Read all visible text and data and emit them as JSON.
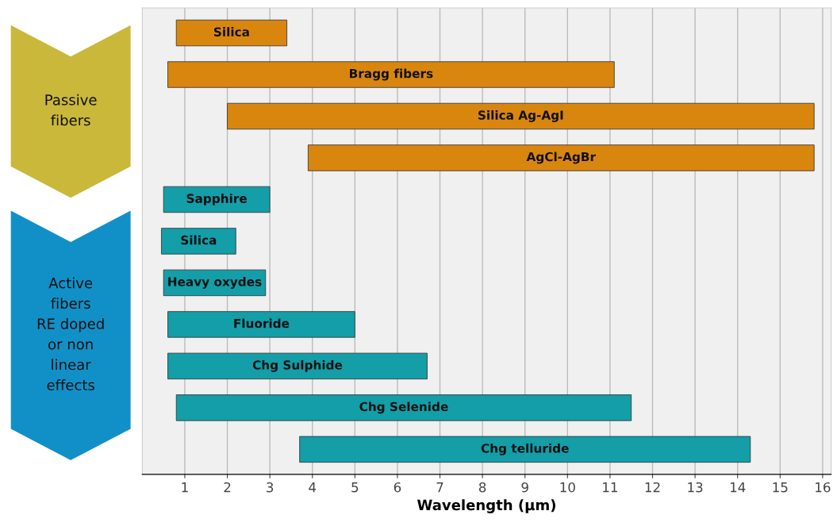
{
  "chart_data": {
    "type": "bar",
    "orientation": "horizontal",
    "xlabel": "Wavelength (µm)",
    "categories": [
      "Silica",
      "Bragg fibers",
      "Silica Ag-AgI",
      "AgCl-AgBr",
      "Sapphire",
      "Silica",
      "Heavy oxydes",
      "Fluoride",
      "Chg Sulphide",
      "Chg Selenide",
      "Chg telluride"
    ],
    "base": [
      0.8,
      0.6,
      2.0,
      3.9,
      0.5,
      0.45,
      0.5,
      0.6,
      0.6,
      0.8,
      3.7
    ],
    "values": [
      2.6,
      10.5,
      13.8,
      11.9,
      2.5,
      1.75,
      2.4,
      4.4,
      6.1,
      10.7,
      10.6
    ],
    "colors": [
      "#d9860f",
      "#d9860f",
      "#d9860f",
      "#d9860f",
      "#139ea8",
      "#139ea8",
      "#139ea8",
      "#139ea8",
      "#139ea8",
      "#139ea8",
      "#139ea8"
    ],
    "xlim": [
      0,
      16.2
    ],
    "xticks": [
      1,
      2,
      3,
      4,
      5,
      6,
      7,
      8,
      9,
      10,
      11,
      12,
      13,
      14,
      15,
      16
    ],
    "grid": "x",
    "tick_labels": "x",
    "annotations": [
      "Passive\nfibers",
      "Active\nfibers\nRE doped\nor non\nlinear\neffects"
    ]
  }
}
